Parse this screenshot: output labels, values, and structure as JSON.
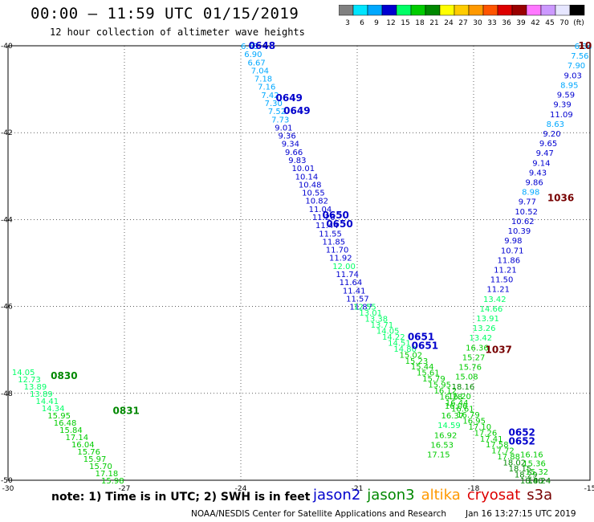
{
  "header": {
    "title": "00:00 – 11:59 UTC 01/15/2019",
    "subtitle": "12 hour collection of altimeter wave heights"
  },
  "colorbar": {
    "labels": [
      "3",
      "6",
      "9",
      "12",
      "15",
      "18",
      "21",
      "24",
      "27",
      "30",
      "33",
      "36",
      "39",
      "42",
      "45",
      "70",
      "(ft)"
    ],
    "colors": [
      "#808080",
      "#00e5ff",
      "#00a8ff",
      "#0000d0",
      "#00ff66",
      "#00cc00",
      "#008800",
      "#ffff00",
      "#ffcc00",
      "#ff9900",
      "#ff5500",
      "#dd0000",
      "#990000",
      "#ff77ff",
      "#cc99ff",
      "#e6e6ff",
      "#000000"
    ]
  },
  "map": {
    "x_axis": {
      "min": -30,
      "max": -15,
      "ticks": [
        -30,
        -27,
        -24,
        -21,
        -18,
        -15
      ]
    },
    "y_axis": {
      "min": -50,
      "max": -40,
      "ticks": [
        -40,
        -42,
        -44,
        -46,
        -48,
        -50
      ]
    }
  },
  "annotations": {
    "time_labels": [
      {
        "text": "0648",
        "lon": -23.8,
        "lat": -40.0,
        "color": "#0000cc"
      },
      {
        "text": "0649",
        "lon": -23.1,
        "lat": -41.2,
        "color": "#0000cc"
      },
      {
        "text": "0649",
        "lon": -22.9,
        "lat": -41.5,
        "color": "#0000cc"
      },
      {
        "text": "0650",
        "lon": -21.9,
        "lat": -43.9,
        "color": "#0000cc"
      },
      {
        "text": "0650",
        "lon": -21.8,
        "lat": -44.1,
        "color": "#0000cc"
      },
      {
        "text": "0651",
        "lon": -19.7,
        "lat": -46.7,
        "color": "#0000cc"
      },
      {
        "text": "0651",
        "lon": -19.6,
        "lat": -46.9,
        "color": "#0000cc"
      },
      {
        "text": "0652",
        "lon": -17.1,
        "lat": -48.9,
        "color": "#0000cc"
      },
      {
        "text": "0652",
        "lon": -17.1,
        "lat": -49.1,
        "color": "#0000cc"
      },
      {
        "text": "0830",
        "lon": -28.9,
        "lat": -47.6,
        "color": "#008800"
      },
      {
        "text": "0831",
        "lon": -27.3,
        "lat": -48.4,
        "color": "#008800"
      },
      {
        "text": "1036",
        "lon": -16.1,
        "lat": -43.5,
        "color": "#770000"
      },
      {
        "text": "1037",
        "lon": -17.7,
        "lat": -47.0,
        "color": "#770000"
      },
      {
        "text": "10",
        "lon": -15.3,
        "lat": -40.0,
        "color": "#770000"
      }
    ],
    "track_a_values": [
      "6.63",
      "6.90",
      "6.67",
      "7.04",
      "7.18",
      "7.16",
      "7.42",
      "7.30",
      "7.52",
      "7.73",
      "9.01",
      "9.36",
      "9.34",
      "9.66",
      "9.83",
      "10.01",
      "10.14",
      "10.48",
      "10.55",
      "10.82",
      "11.04",
      "11.26",
      "11.44",
      "11.55",
      "11.85",
      "11.70",
      "11.92",
      "12.00",
      "11.74",
      "11.64",
      "11.41",
      "11.57",
      "11.87"
    ],
    "track_b_values": [
      "12.55",
      "13.01",
      "13.38",
      "13.71",
      "14.05",
      "14.22",
      "14.51",
      "14.80",
      "15.02",
      "15.23",
      "15.44",
      "15.61",
      "15.79",
      "15.95",
      "16.12",
      "16.28",
      "16.44",
      "16.61",
      "16.79",
      "16.95",
      "17.10",
      "17.26",
      "17.41",
      "17.58",
      "17.72",
      "17.88",
      "18.02",
      "18.15",
      "18.29",
      "18.40"
    ],
    "track_c_values": [
      "14.05",
      "12.73",
      "13.89",
      "13.89",
      "14.41",
      "14.34",
      "15.95",
      "16.48",
      "15.84",
      "17.14",
      "16.04",
      "15.76",
      "15.97",
      "15.70",
      "17.18",
      "15.98"
    ],
    "track_d_values": [
      "6.34",
      "7.56",
      "7.90",
      "9.03",
      "8.95",
      "9.59",
      "9.39",
      "11.09",
      "8.63",
      "9.20",
      "9.65",
      "9.47",
      "9.14",
      "9.43",
      "9.86",
      "8.98",
      "9.77",
      "10.52",
      "10.62",
      "10.39",
      "9.98",
      "10.71",
      "11.86",
      "11.21",
      "11.50",
      "11.21",
      "13.42",
      "14.66",
      "13.91",
      "13.26",
      "13.42",
      "16.36",
      "15.27",
      "15.76",
      "15.08",
      "18.16",
      "16.20",
      "16.06",
      "16.37",
      "14.59",
      "16.92",
      "16.53",
      "17.15"
    ],
    "track_e_values": [
      "16.16",
      "15.36",
      "15.32",
      "18.24"
    ]
  },
  "footer": {
    "note": "note: 1) Time is in UTC; 2) SWH is in feet",
    "satellites": [
      {
        "name": "jason2",
        "color": "#0000cc"
      },
      {
        "name": "jason3",
        "color": "#008800"
      },
      {
        "name": "altika",
        "color": "#ff9900"
      },
      {
        "name": "cryosat",
        "color": "#dd0000"
      },
      {
        "name": "s3a",
        "color": "#770000"
      }
    ],
    "credit": "NOAA/NESDIS Center for Satellite Applications and Research",
    "timestamp": "Jan 16 13:27:15 UTC 2019"
  }
}
